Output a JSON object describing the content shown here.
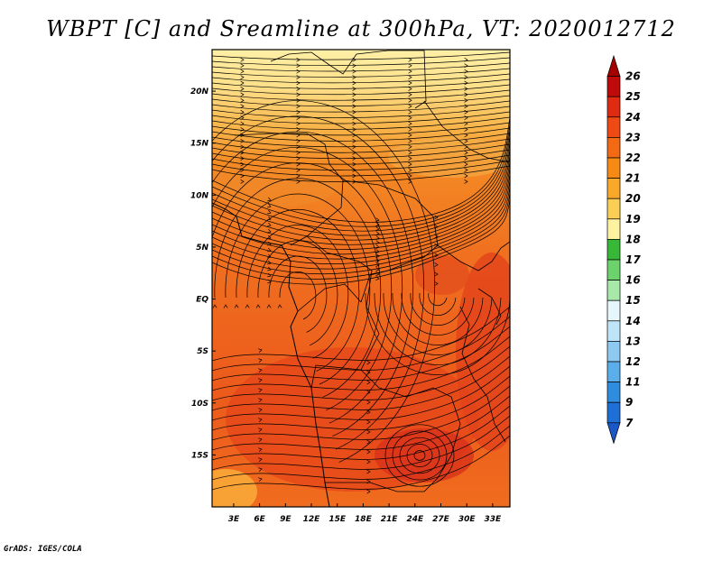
{
  "title": "WBPT [C] and Sreamline at 300hPa, VT: 2020012712",
  "footer": "GrADS: IGES/COLA",
  "map": {
    "lat_labels": [
      "20N",
      "15N",
      "10N",
      "5N",
      "EQ",
      "5S",
      "10S",
      "15S"
    ],
    "lat_values": [
      20,
      15,
      10,
      5,
      0,
      -5,
      -10,
      -15
    ],
    "lon_labels": [
      "3E",
      "6E",
      "9E",
      "12E",
      "15E",
      "18E",
      "21E",
      "24E",
      "27E",
      "30E",
      "33E"
    ],
    "lon_values": [
      3,
      6,
      9,
      12,
      15,
      18,
      21,
      24,
      27,
      30,
      33
    ],
    "lon_range": [
      0.5,
      35
    ],
    "lat_range": [
      -20,
      24
    ]
  },
  "colorbar": {
    "levels": [
      "26",
      "25",
      "24",
      "23",
      "22",
      "21",
      "20",
      "19",
      "18",
      "17",
      "16",
      "15",
      "14",
      "13",
      "12",
      "11",
      "9",
      "7"
    ],
    "colors": [
      "#a50000",
      "#c00a0a",
      "#e02a12",
      "#f04a14",
      "#f46a14",
      "#f68a14",
      "#f9a82a",
      "#fbcf56",
      "#fef2a0",
      "#37b837",
      "#6cd26c",
      "#a8e8a8",
      "#e6f7fb",
      "#bde4f7",
      "#8ec9f1",
      "#5aaeea",
      "#2f8de0",
      "#1e6fd6",
      "#1a58c8"
    ]
  },
  "colors": {
    "cool": "#fde38a",
    "mid": "#f6a22a",
    "warm": "#f06a1c",
    "hot": "#e5401a",
    "streamline": "#000000"
  }
}
